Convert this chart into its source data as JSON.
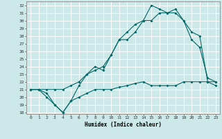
{
  "title": "",
  "xlabel": "Humidex (Indice chaleur)",
  "bg_color": "#cce8e8",
  "grid_color": "#ffffff",
  "line_color": "#006666",
  "xlim": [
    -0.5,
    23.5
  ],
  "ylim": [
    17.8,
    32.5
  ],
  "yticks": [
    18,
    19,
    20,
    21,
    22,
    23,
    24,
    25,
    26,
    27,
    28,
    29,
    30,
    31,
    32
  ],
  "xticks": [
    0,
    1,
    2,
    3,
    4,
    5,
    6,
    7,
    8,
    9,
    10,
    11,
    12,
    13,
    14,
    15,
    16,
    17,
    18,
    19,
    20,
    21,
    22,
    23
  ],
  "line1_x": [
    0,
    1,
    2,
    3,
    4,
    5,
    6,
    7,
    8,
    9,
    10,
    11,
    12,
    13,
    14,
    15,
    16,
    17,
    18,
    19,
    20,
    21,
    22,
    23
  ],
  "line1_y": [
    21,
    21,
    20,
    19,
    18,
    19.5,
    20,
    20.5,
    21,
    21,
    21,
    21.3,
    21.5,
    21.8,
    22,
    21.5,
    21.5,
    21.5,
    21.5,
    22,
    22,
    22,
    22,
    21.5
  ],
  "line2_x": [
    0,
    1,
    2,
    3,
    4,
    5,
    6,
    7,
    8,
    9,
    10,
    11,
    12,
    13,
    14,
    15,
    16,
    17,
    18,
    19,
    20,
    21,
    22,
    23
  ],
  "line2_y": [
    21,
    21,
    20.5,
    19,
    18,
    19.5,
    21.5,
    23,
    24,
    23.5,
    25.5,
    27.5,
    27.5,
    28.5,
    30,
    30,
    31,
    31,
    31.5,
    30,
    27.5,
    26.5,
    22.5,
    22
  ],
  "line3_x": [
    0,
    1,
    2,
    3,
    4,
    5,
    6,
    7,
    8,
    9,
    10,
    11,
    12,
    13,
    14,
    15,
    16,
    17,
    18,
    19,
    20,
    21,
    22,
    23
  ],
  "line3_y": [
    21,
    21,
    21,
    21,
    21,
    21.5,
    22,
    23,
    23.5,
    24,
    25.5,
    27.5,
    28.5,
    29.5,
    30,
    32,
    31.5,
    31,
    31,
    30,
    28.5,
    28,
    22,
    22
  ]
}
